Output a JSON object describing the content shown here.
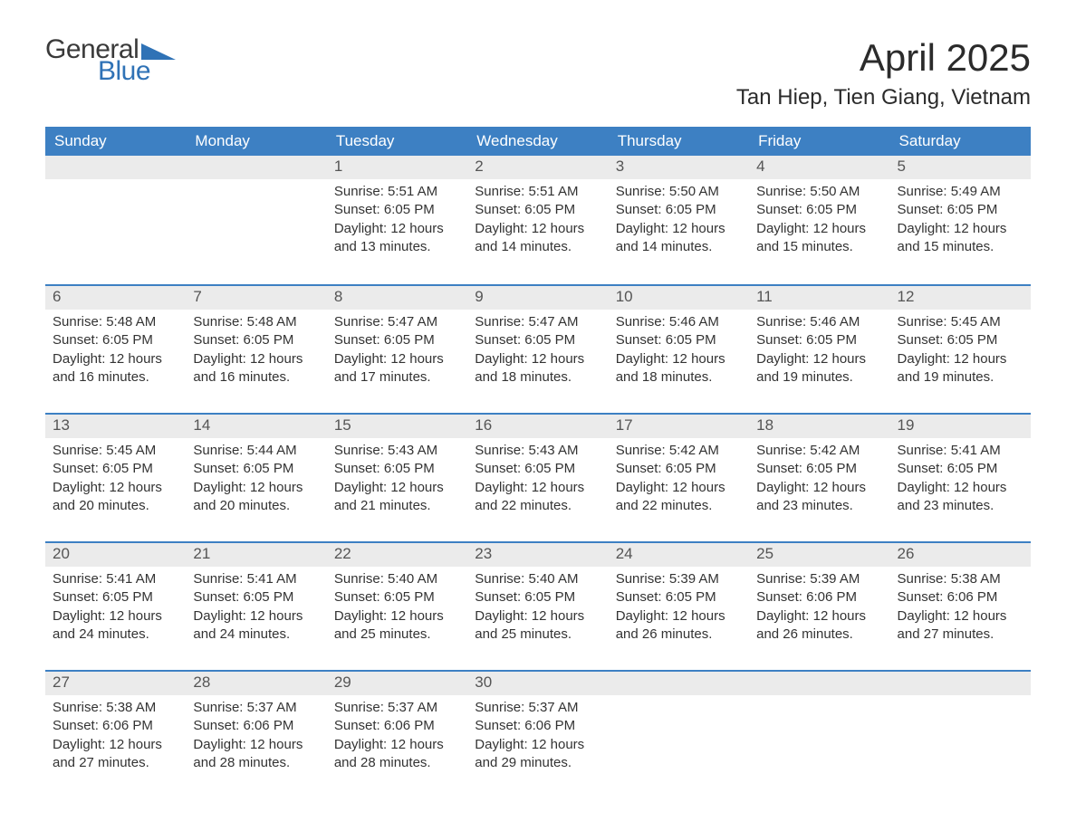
{
  "logo": {
    "word1": "General",
    "word2": "Blue"
  },
  "title": "April 2025",
  "location": "Tan Hiep, Tien Giang, Vietnam",
  "colors": {
    "header_bg": "#3d80c3",
    "header_text": "#ffffff",
    "daynum_bg": "#ebebeb",
    "accent": "#2f72b6",
    "text": "#333333"
  },
  "day_headers": [
    "Sunday",
    "Monday",
    "Tuesday",
    "Wednesday",
    "Thursday",
    "Friday",
    "Saturday"
  ],
  "weeks": [
    [
      null,
      null,
      {
        "n": "1",
        "sunrise": "5:51 AM",
        "sunset": "6:05 PM",
        "dl1": "12 hours",
        "dl2": "and 13 minutes."
      },
      {
        "n": "2",
        "sunrise": "5:51 AM",
        "sunset": "6:05 PM",
        "dl1": "12 hours",
        "dl2": "and 14 minutes."
      },
      {
        "n": "3",
        "sunrise": "5:50 AM",
        "sunset": "6:05 PM",
        "dl1": "12 hours",
        "dl2": "and 14 minutes."
      },
      {
        "n": "4",
        "sunrise": "5:50 AM",
        "sunset": "6:05 PM",
        "dl1": "12 hours",
        "dl2": "and 15 minutes."
      },
      {
        "n": "5",
        "sunrise": "5:49 AM",
        "sunset": "6:05 PM",
        "dl1": "12 hours",
        "dl2": "and 15 minutes."
      }
    ],
    [
      {
        "n": "6",
        "sunrise": "5:48 AM",
        "sunset": "6:05 PM",
        "dl1": "12 hours",
        "dl2": "and 16 minutes."
      },
      {
        "n": "7",
        "sunrise": "5:48 AM",
        "sunset": "6:05 PM",
        "dl1": "12 hours",
        "dl2": "and 16 minutes."
      },
      {
        "n": "8",
        "sunrise": "5:47 AM",
        "sunset": "6:05 PM",
        "dl1": "12 hours",
        "dl2": "and 17 minutes."
      },
      {
        "n": "9",
        "sunrise": "5:47 AM",
        "sunset": "6:05 PM",
        "dl1": "12 hours",
        "dl2": "and 18 minutes."
      },
      {
        "n": "10",
        "sunrise": "5:46 AM",
        "sunset": "6:05 PM",
        "dl1": "12 hours",
        "dl2": "and 18 minutes."
      },
      {
        "n": "11",
        "sunrise": "5:46 AM",
        "sunset": "6:05 PM",
        "dl1": "12 hours",
        "dl2": "and 19 minutes."
      },
      {
        "n": "12",
        "sunrise": "5:45 AM",
        "sunset": "6:05 PM",
        "dl1": "12 hours",
        "dl2": "and 19 minutes."
      }
    ],
    [
      {
        "n": "13",
        "sunrise": "5:45 AM",
        "sunset": "6:05 PM",
        "dl1": "12 hours",
        "dl2": "and 20 minutes."
      },
      {
        "n": "14",
        "sunrise": "5:44 AM",
        "sunset": "6:05 PM",
        "dl1": "12 hours",
        "dl2": "and 20 minutes."
      },
      {
        "n": "15",
        "sunrise": "5:43 AM",
        "sunset": "6:05 PM",
        "dl1": "12 hours",
        "dl2": "and 21 minutes."
      },
      {
        "n": "16",
        "sunrise": "5:43 AM",
        "sunset": "6:05 PM",
        "dl1": "12 hours",
        "dl2": "and 22 minutes."
      },
      {
        "n": "17",
        "sunrise": "5:42 AM",
        "sunset": "6:05 PM",
        "dl1": "12 hours",
        "dl2": "and 22 minutes."
      },
      {
        "n": "18",
        "sunrise": "5:42 AM",
        "sunset": "6:05 PM",
        "dl1": "12 hours",
        "dl2": "and 23 minutes."
      },
      {
        "n": "19",
        "sunrise": "5:41 AM",
        "sunset": "6:05 PM",
        "dl1": "12 hours",
        "dl2": "and 23 minutes."
      }
    ],
    [
      {
        "n": "20",
        "sunrise": "5:41 AM",
        "sunset": "6:05 PM",
        "dl1": "12 hours",
        "dl2": "and 24 minutes."
      },
      {
        "n": "21",
        "sunrise": "5:41 AM",
        "sunset": "6:05 PM",
        "dl1": "12 hours",
        "dl2": "and 24 minutes."
      },
      {
        "n": "22",
        "sunrise": "5:40 AM",
        "sunset": "6:05 PM",
        "dl1": "12 hours",
        "dl2": "and 25 minutes."
      },
      {
        "n": "23",
        "sunrise": "5:40 AM",
        "sunset": "6:05 PM",
        "dl1": "12 hours",
        "dl2": "and 25 minutes."
      },
      {
        "n": "24",
        "sunrise": "5:39 AM",
        "sunset": "6:05 PM",
        "dl1": "12 hours",
        "dl2": "and 26 minutes."
      },
      {
        "n": "25",
        "sunrise": "5:39 AM",
        "sunset": "6:06 PM",
        "dl1": "12 hours",
        "dl2": "and 26 minutes."
      },
      {
        "n": "26",
        "sunrise": "5:38 AM",
        "sunset": "6:06 PM",
        "dl1": "12 hours",
        "dl2": "and 27 minutes."
      }
    ],
    [
      {
        "n": "27",
        "sunrise": "5:38 AM",
        "sunset": "6:06 PM",
        "dl1": "12 hours",
        "dl2": "and 27 minutes."
      },
      {
        "n": "28",
        "sunrise": "5:37 AM",
        "sunset": "6:06 PM",
        "dl1": "12 hours",
        "dl2": "and 28 minutes."
      },
      {
        "n": "29",
        "sunrise": "5:37 AM",
        "sunset": "6:06 PM",
        "dl1": "12 hours",
        "dl2": "and 28 minutes."
      },
      {
        "n": "30",
        "sunrise": "5:37 AM",
        "sunset": "6:06 PM",
        "dl1": "12 hours",
        "dl2": "and 29 minutes."
      },
      null,
      null,
      null
    ]
  ],
  "labels": {
    "sunrise": "Sunrise: ",
    "sunset": "Sunset: ",
    "daylight": "Daylight: "
  }
}
